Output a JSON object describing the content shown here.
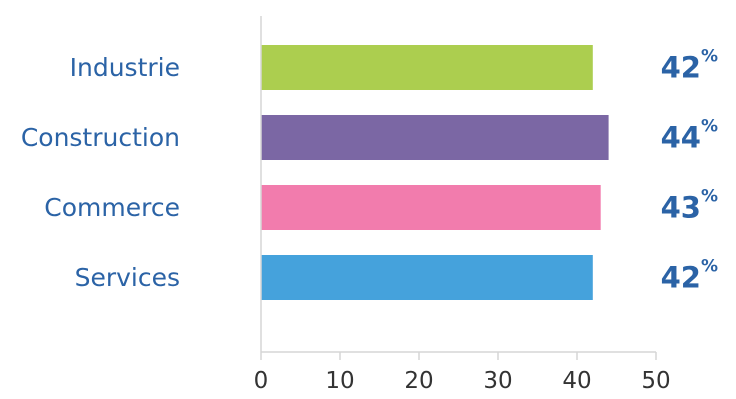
{
  "chart_data": {
    "type": "bar",
    "orientation": "horizontal",
    "categories": [
      "Industrie",
      "Construction",
      "Commerce",
      "Services"
    ],
    "values": [
      42,
      44,
      43,
      42
    ],
    "value_labels": [
      "42",
      "44",
      "43",
      "42"
    ],
    "value_unit": "%",
    "bar_colors": [
      "#acce4f",
      "#7b67a4",
      "#f27cad",
      "#45a2dc"
    ],
    "xlim": [
      0,
      50
    ],
    "xticks": [
      0,
      10,
      20,
      30,
      40,
      50
    ],
    "xtick_labels": [
      "0",
      "10",
      "20",
      "30",
      "40",
      "50"
    ],
    "grid": false,
    "legend": "none"
  },
  "colors": {
    "category_text": "#2b63a6",
    "value_text": "#2b63a6",
    "tick_text": "#333333",
    "axis_line": "#d6d6d6"
  }
}
